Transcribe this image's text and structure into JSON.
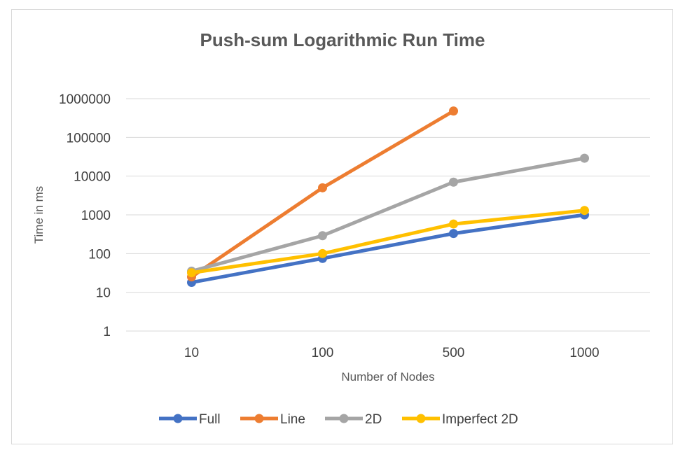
{
  "chart_data": {
    "type": "line",
    "title": "Push-sum Logarithmic Run Time",
    "xlabel": "Number of Nodes",
    "ylabel": "Time in ms",
    "categories": [
      "10",
      "100",
      "500",
      "1000"
    ],
    "y_scale": "log",
    "ylim": [
      1,
      1000000
    ],
    "y_ticks": [
      "1",
      "10",
      "100",
      "1000",
      "10000",
      "100000",
      "1000000"
    ],
    "grid": true,
    "legend_position": "bottom",
    "series": [
      {
        "name": "Full",
        "color": "#4472c4",
        "values": [
          18,
          75,
          330,
          1000
        ]
      },
      {
        "name": "Line",
        "color": "#ed7d31",
        "values": [
          25,
          5000,
          480000,
          null
        ]
      },
      {
        "name": "2D",
        "color": "#a5a5a5",
        "values": [
          35,
          290,
          7000,
          29000
        ]
      },
      {
        "name": "Imperfect 2D",
        "color": "#ffc000",
        "values": [
          32,
          100,
          580,
          1300
        ]
      }
    ]
  }
}
